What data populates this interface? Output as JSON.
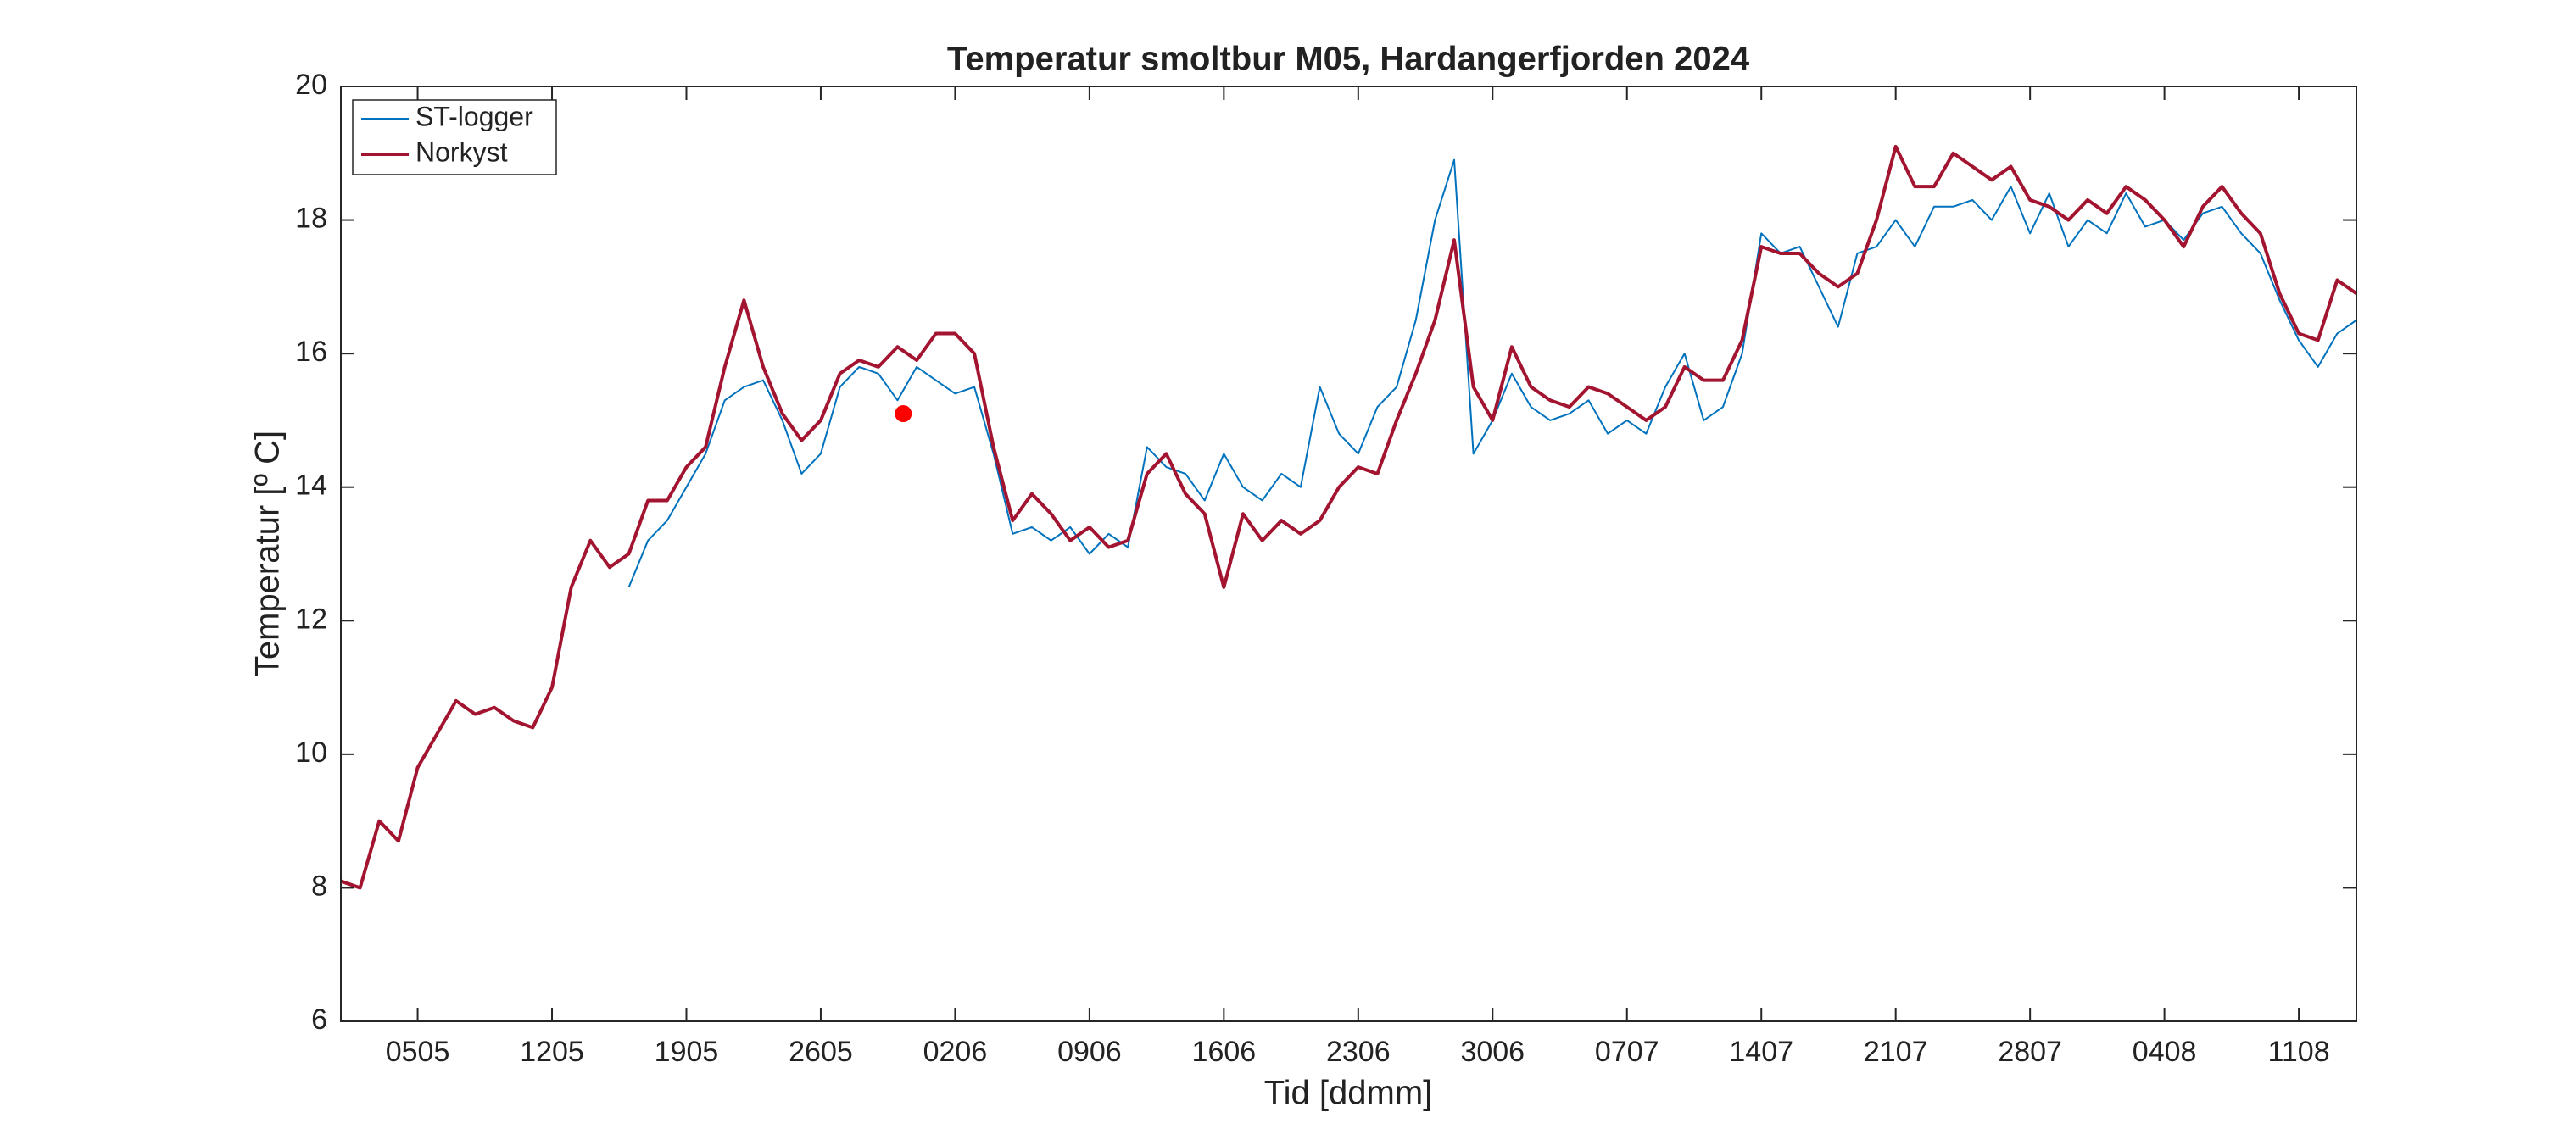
{
  "chart_data": {
    "type": "line",
    "title": "Temperatur smoltbur M05, Hardangerfjorden 2024",
    "xlabel": "Tid [ddmm]",
    "ylabel": "Temperatur [º C]",
    "xlim": [
      122,
      227
    ],
    "xticks": [
      {
        "value": 126,
        "label": "0505"
      },
      {
        "value": 133,
        "label": "1205"
      },
      {
        "value": 140,
        "label": "1905"
      },
      {
        "value": 147,
        "label": "2605"
      },
      {
        "value": 154,
        "label": "0206"
      },
      {
        "value": 161,
        "label": "0906"
      },
      {
        "value": 168,
        "label": "1606"
      },
      {
        "value": 175,
        "label": "2306"
      },
      {
        "value": 182,
        "label": "3006"
      },
      {
        "value": 189,
        "label": "0707"
      },
      {
        "value": 196,
        "label": "1407"
      },
      {
        "value": 203,
        "label": "2107"
      },
      {
        "value": 210,
        "label": "2807"
      },
      {
        "value": 217,
        "label": "0408"
      },
      {
        "value": 224,
        "label": "1108"
      }
    ],
    "ylim": [
      6,
      20
    ],
    "yticks": [
      6,
      8,
      10,
      12,
      14,
      16,
      18,
      20
    ],
    "grid": false,
    "legend": "upper left",
    "series": [
      {
        "name": "ST-logger",
        "color": "#0072bd",
        "width": 2,
        "x": [
          137,
          138,
          139,
          140,
          141,
          142,
          143,
          144,
          145,
          146,
          147,
          148,
          149,
          150,
          151,
          152,
          153,
          154,
          155,
          156,
          157,
          158,
          159,
          160,
          161,
          162,
          163,
          164,
          165,
          166,
          167,
          168,
          169,
          170,
          171,
          172,
          173,
          174,
          175,
          176,
          177,
          178,
          179,
          180,
          181,
          182,
          183,
          184,
          185,
          186,
          187,
          188,
          189,
          190,
          191,
          192,
          193,
          194,
          195,
          196,
          197,
          198,
          199,
          200,
          201,
          202,
          203,
          204,
          205,
          206,
          207,
          208,
          209,
          210,
          211,
          212,
          213,
          214,
          215,
          216,
          217,
          218,
          219,
          220,
          221,
          222,
          223,
          224,
          225,
          226,
          227
        ],
        "values": [
          12.5,
          13.2,
          13.5,
          14.0,
          14.5,
          15.3,
          15.5,
          15.6,
          15.0,
          14.2,
          14.5,
          15.5,
          15.8,
          15.7,
          15.3,
          15.8,
          15.6,
          15.4,
          15.5,
          14.5,
          13.3,
          13.4,
          13.2,
          13.4,
          13.0,
          13.3,
          13.1,
          14.6,
          14.3,
          14.2,
          13.8,
          14.5,
          14.0,
          13.8,
          14.2,
          14.0,
          15.5,
          14.8,
          14.5,
          15.2,
          15.5,
          16.5,
          18.0,
          18.9,
          14.5,
          15.0,
          15.7,
          15.2,
          15.0,
          15.1,
          15.3,
          14.8,
          15.0,
          14.8,
          15.5,
          16.0,
          15.0,
          15.2,
          16.0,
          17.8,
          17.5,
          17.6,
          17.0,
          16.4,
          17.5,
          17.6,
          18.0,
          17.6,
          18.2,
          18.2,
          18.3,
          18.0,
          18.5,
          17.8,
          18.4,
          17.6,
          18.0,
          17.8,
          18.4,
          17.9,
          18.0,
          17.7,
          18.1,
          18.2,
          17.8,
          17.5,
          16.8,
          16.2,
          15.8,
          16.3,
          16.5
        ]
      },
      {
        "name": "Norkyst",
        "color": "#a2142f",
        "width": 4,
        "x": [
          122,
          123,
          124,
          125,
          126,
          127,
          128,
          129,
          130,
          131,
          132,
          133,
          134,
          135,
          136,
          137,
          138,
          139,
          140,
          141,
          142,
          143,
          144,
          145,
          146,
          147,
          148,
          149,
          150,
          151,
          152,
          153,
          154,
          155,
          156,
          157,
          158,
          159,
          160,
          161,
          162,
          163,
          164,
          165,
          166,
          167,
          168,
          169,
          170,
          171,
          172,
          173,
          174,
          175,
          176,
          177,
          178,
          179,
          180,
          181,
          182,
          183,
          184,
          185,
          186,
          187,
          188,
          189,
          190,
          191,
          192,
          193,
          194,
          195,
          196,
          197,
          198,
          199,
          200,
          201,
          202,
          203,
          204,
          205,
          206,
          207,
          208,
          209,
          210,
          211,
          212,
          213,
          214,
          215,
          216,
          217,
          218,
          219,
          220,
          221,
          222,
          223,
          224,
          225,
          226,
          227
        ],
        "values": [
          8.1,
          8.0,
          9.0,
          8.7,
          9.8,
          10.3,
          10.8,
          10.6,
          10.7,
          10.5,
          10.4,
          11.0,
          12.5,
          13.2,
          12.8,
          13.0,
          13.8,
          13.8,
          14.3,
          14.6,
          15.8,
          16.8,
          15.8,
          15.1,
          14.7,
          15.0,
          15.7,
          15.9,
          15.8,
          16.1,
          15.9,
          16.3,
          16.3,
          16.0,
          14.6,
          13.5,
          13.9,
          13.6,
          13.2,
          13.4,
          13.1,
          13.2,
          14.2,
          14.5,
          13.9,
          13.6,
          12.5,
          13.6,
          13.2,
          13.5,
          13.3,
          13.5,
          14.0,
          14.3,
          14.2,
          15.0,
          15.7,
          16.5,
          17.7,
          15.5,
          15.0,
          16.1,
          15.5,
          15.3,
          15.2,
          15.5,
          15.4,
          15.2,
          15.0,
          15.2,
          15.8,
          15.6,
          15.6,
          16.2,
          17.6,
          17.5,
          17.5,
          17.2,
          17.0,
          17.2,
          18.0,
          19.1,
          18.5,
          18.5,
          19.0,
          18.8,
          18.6,
          18.8,
          18.3,
          18.2,
          18.0,
          18.3,
          18.1,
          18.5,
          18.3,
          18.0,
          17.6,
          18.2,
          18.5,
          18.1,
          17.8,
          16.9,
          16.3,
          16.2,
          17.1,
          16.9
        ]
      }
    ],
    "highlight": {
      "x": 151.3,
      "y": 15.1,
      "color": "#ff0000"
    }
  }
}
